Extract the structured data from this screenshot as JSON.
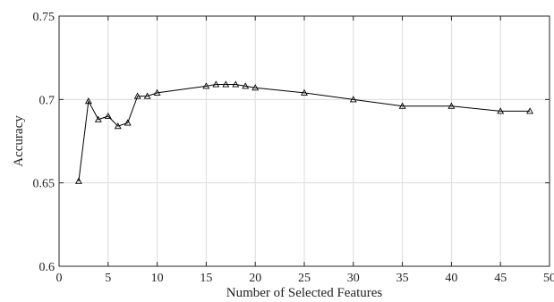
{
  "chart_data": {
    "type": "line",
    "title": "",
    "xlabel": "Number of Selected Features",
    "ylabel": "Accuracy",
    "xlim": [
      0,
      50
    ],
    "ylim": [
      0.6,
      0.75
    ],
    "xticks": [
      0,
      5,
      10,
      15,
      20,
      25,
      30,
      35,
      40,
      45,
      50
    ],
    "yticks": [
      0.6,
      0.65,
      0.7,
      0.75
    ],
    "xtick_labels": [
      "0",
      "5",
      "10",
      "15",
      "20",
      "25",
      "30",
      "35",
      "40",
      "45",
      "50"
    ],
    "ytick_labels": [
      "0.6",
      "0.65",
      "0.7",
      "0.75"
    ],
    "grid": true,
    "marker": "triangle",
    "series": [
      {
        "x": [
          2,
          3,
          4,
          5,
          6,
          7,
          8,
          9,
          10,
          15,
          16,
          17,
          18,
          19,
          20,
          25,
          30,
          35,
          40,
          45,
          48
        ],
        "values": [
          0.651,
          0.699,
          0.688,
          0.69,
          0.684,
          0.686,
          0.702,
          0.702,
          0.704,
          0.708,
          0.709,
          0.709,
          0.709,
          0.708,
          0.707,
          0.704,
          0.7,
          0.696,
          0.696,
          0.693,
          0.693
        ]
      }
    ]
  }
}
